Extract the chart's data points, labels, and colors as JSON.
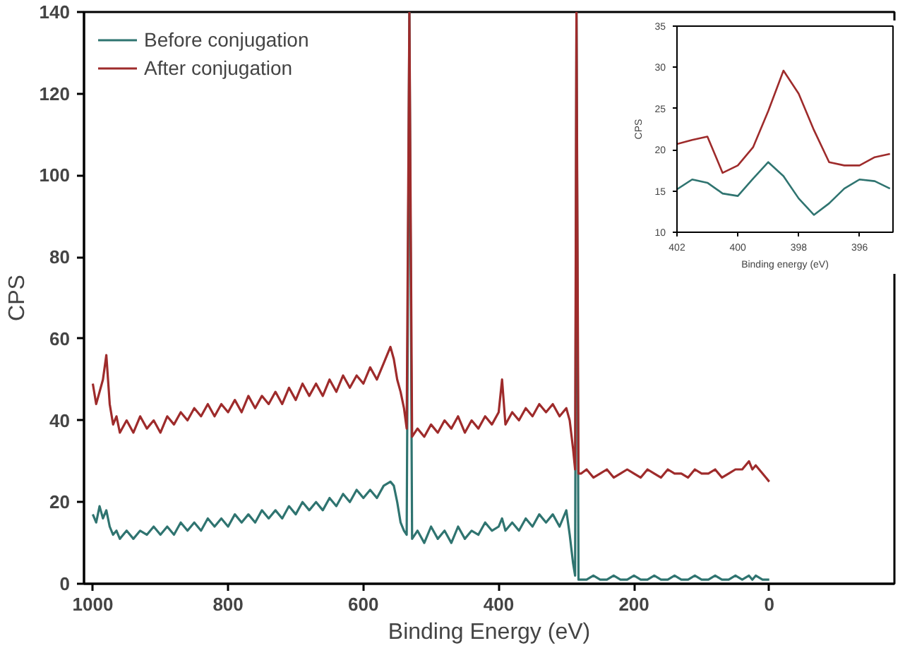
{
  "chart_data": [
    {
      "type": "line",
      "xlabel": "Binding Energy (eV)",
      "ylabel": "CPS",
      "xlim": [
        1013,
        -185
      ],
      "ylim": [
        0,
        140
      ],
      "xticks": [
        1000,
        800,
        600,
        400,
        200,
        0
      ],
      "yticks": [
        0,
        20,
        40,
        60,
        80,
        100,
        120,
        140
      ],
      "grid": false,
      "legend": "top left",
      "x": [
        1000,
        995,
        990,
        985,
        980,
        975,
        970,
        965,
        960,
        950,
        940,
        930,
        920,
        910,
        900,
        890,
        880,
        870,
        860,
        850,
        840,
        830,
        820,
        810,
        800,
        790,
        780,
        770,
        760,
        750,
        740,
        730,
        720,
        710,
        700,
        690,
        680,
        670,
        660,
        650,
        640,
        630,
        620,
        610,
        600,
        590,
        580,
        570,
        560,
        555,
        550,
        545,
        540,
        536,
        532,
        528,
        520,
        510,
        500,
        490,
        480,
        470,
        460,
        450,
        440,
        430,
        420,
        410,
        400,
        395,
        390,
        380,
        370,
        360,
        350,
        340,
        330,
        320,
        310,
        300,
        295,
        290,
        287,
        285,
        282,
        278,
        270,
        260,
        250,
        240,
        230,
        220,
        210,
        200,
        190,
        180,
        170,
        160,
        150,
        140,
        130,
        120,
        110,
        100,
        90,
        80,
        70,
        60,
        50,
        40,
        30,
        25,
        20,
        10,
        5,
        0
      ],
      "series": [
        {
          "name": "Before conjugation",
          "color": "#2f7470",
          "values": [
            17,
            15,
            19,
            16,
            18,
            14,
            12,
            13,
            11,
            13,
            11,
            13,
            12,
            14,
            12,
            14,
            12,
            15,
            13,
            15,
            13,
            16,
            14,
            16,
            14,
            17,
            15,
            17,
            15,
            18,
            16,
            18,
            16,
            19,
            17,
            20,
            18,
            20,
            18,
            21,
            19,
            22,
            20,
            23,
            21,
            23,
            21,
            24,
            25,
            24,
            20,
            15,
            13,
            12,
            140,
            11,
            13,
            10,
            14,
            11,
            13,
            10,
            14,
            11,
            13,
            12,
            15,
            13,
            14,
            16,
            13,
            15,
            13,
            16,
            14,
            17,
            15,
            17,
            14,
            18,
            12,
            5,
            2,
            140,
            1,
            1,
            1,
            2,
            1,
            1,
            2,
            1,
            1,
            2,
            1,
            1,
            2,
            1,
            1,
            2,
            1,
            1,
            2,
            1,
            1,
            2,
            1,
            1,
            2,
            1,
            2,
            1,
            2,
            1,
            1,
            1
          ]
        },
        {
          "name": "After conjugation",
          "color": "#9e2b2b",
          "values": [
            49,
            44,
            47,
            50,
            56,
            44,
            39,
            41,
            37,
            40,
            37,
            41,
            38,
            40,
            37,
            41,
            39,
            42,
            40,
            43,
            41,
            44,
            41,
            44,
            42,
            45,
            42,
            46,
            43,
            46,
            44,
            47,
            44,
            48,
            45,
            49,
            46,
            49,
            46,
            50,
            47,
            51,
            48,
            51,
            49,
            53,
            50,
            54,
            58,
            55,
            50,
            47,
            43,
            38,
            140,
            36,
            38,
            36,
            39,
            37,
            40,
            38,
            41,
            37,
            40,
            38,
            41,
            39,
            42,
            50,
            39,
            42,
            40,
            43,
            41,
            44,
            42,
            44,
            41,
            43,
            40,
            33,
            28,
            140,
            27,
            27,
            28,
            26,
            27,
            28,
            26,
            27,
            28,
            27,
            26,
            28,
            27,
            26,
            28,
            27,
            27,
            26,
            28,
            27,
            27,
            28,
            26,
            27,
            28,
            28,
            30,
            28,
            29,
            27,
            26,
            25
          ]
        }
      ]
    },
    {
      "type": "line",
      "xlabel": "Binding energy (eV)",
      "ylabel": "CPS",
      "xlim": [
        402,
        394.9
      ],
      "ylim": [
        10,
        35
      ],
      "xticks": [
        402,
        400,
        398,
        396
      ],
      "yticks": [
        10,
        15,
        20,
        25,
        30,
        35
      ],
      "grid": false,
      "x": [
        402,
        401.5,
        401,
        400.5,
        400,
        399.5,
        399,
        398.5,
        398,
        397.5,
        397,
        396.5,
        396,
        395.5,
        395
      ],
      "series": [
        {
          "color": "#2f7470",
          "values": [
            15.2,
            16.4,
            16.0,
            14.7,
            14.4,
            16.5,
            18.5,
            16.8,
            14.1,
            12.1,
            13.5,
            15.3,
            16.4,
            16.2,
            15.3
          ]
        },
        {
          "color": "#9e2b2b",
          "values": [
            20.7,
            21.2,
            21.6,
            17.2,
            18.1,
            20.3,
            24.7,
            29.6,
            26.8,
            22.4,
            18.5,
            18.1,
            18.1,
            19.1,
            19.5
          ]
        }
      ]
    }
  ]
}
